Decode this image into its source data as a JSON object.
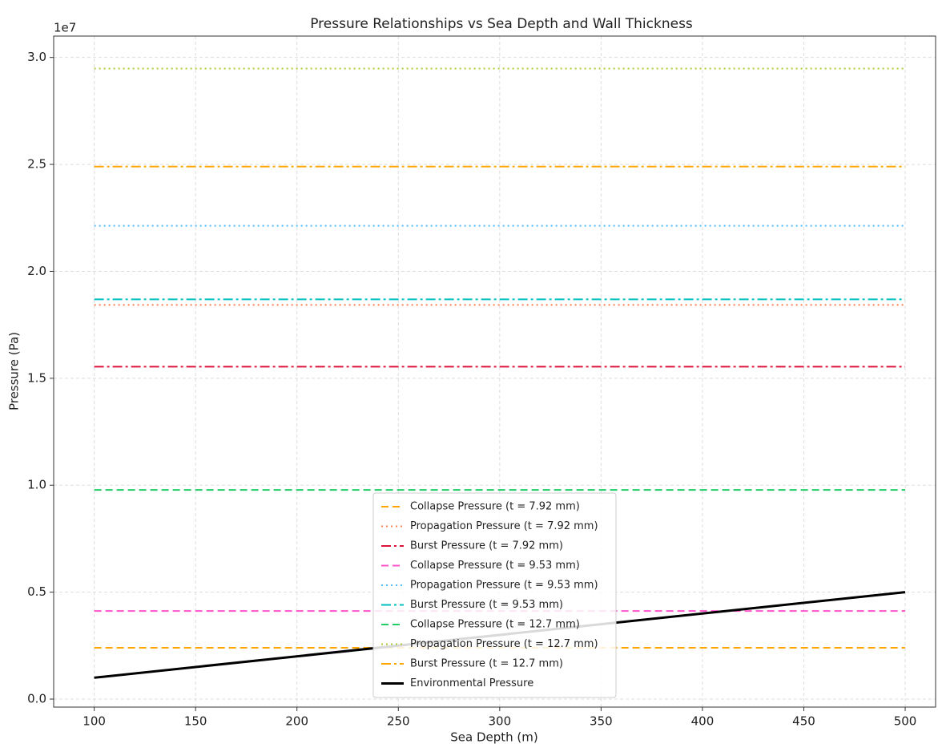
{
  "chart_data": {
    "type": "line",
    "title": "Pressure Relationships vs Sea Depth and Wall Thickness",
    "xlabel": "Sea Depth (m)",
    "ylabel": "Pressure (Pa)",
    "y_offset_label": "1e7",
    "x": [
      100,
      500
    ],
    "series": [
      {
        "name": "Collapse Pressure (t = 7.92 mm)",
        "color": "#ffa500",
        "style": "dashed",
        "values": [
          2400000,
          2400000
        ]
      },
      {
        "name": "Propagation Pressure (t = 7.92 mm)",
        "color": "#ff7f50",
        "style": "dotted",
        "values": [
          18430000,
          18430000
        ]
      },
      {
        "name": "Burst Pressure (t = 7.92 mm)",
        "color": "#dc143c",
        "style": "dashdot",
        "values": [
          15540000,
          15540000
        ]
      },
      {
        "name": "Collapse Pressure (t = 9.53 mm)",
        "color": "#ff55cc",
        "style": "dashed",
        "values": [
          4120000,
          4120000
        ]
      },
      {
        "name": "Propagation Pressure (t = 9.53 mm)",
        "color": "#55bbff",
        "style": "dotted",
        "values": [
          22130000,
          22130000
        ]
      },
      {
        "name": "Burst Pressure (t = 9.53 mm)",
        "color": "#00bfbf",
        "style": "dashdot",
        "values": [
          18690000,
          18690000
        ]
      },
      {
        "name": "Collapse Pressure (t = 12.7 mm)",
        "color": "#22cc66",
        "style": "dashed",
        "values": [
          9780000,
          9780000
        ]
      },
      {
        "name": "Propagation Pressure (t = 12.7 mm)",
        "color": "#aacc33",
        "style": "dotted",
        "values": [
          29480000,
          29480000
        ]
      },
      {
        "name": "Burst Pressure (t = 12.7 mm)",
        "color": "#ffa500",
        "style": "dashdot",
        "values": [
          24900000,
          24900000
        ]
      },
      {
        "name": "Environmental Pressure",
        "color": "#000000",
        "style": "solid",
        "values": [
          1000000,
          5000000
        ]
      }
    ],
    "xlim": [
      80,
      515
    ],
    "xticks": [
      100,
      150,
      200,
      250,
      300,
      350,
      400,
      450,
      500
    ],
    "ylim": [
      -375000,
      31000000
    ],
    "yticks": [
      {
        "value": 0,
        "label": "0.0"
      },
      {
        "value": 5000000,
        "label": "0.5"
      },
      {
        "value": 10000000,
        "label": "1.0"
      },
      {
        "value": 15000000,
        "label": "1.5"
      },
      {
        "value": 20000000,
        "label": "2.0"
      },
      {
        "value": 25000000,
        "label": "2.5"
      },
      {
        "value": 30000000,
        "label": "3.0"
      }
    ],
    "grid": true,
    "legend": "lower center"
  }
}
